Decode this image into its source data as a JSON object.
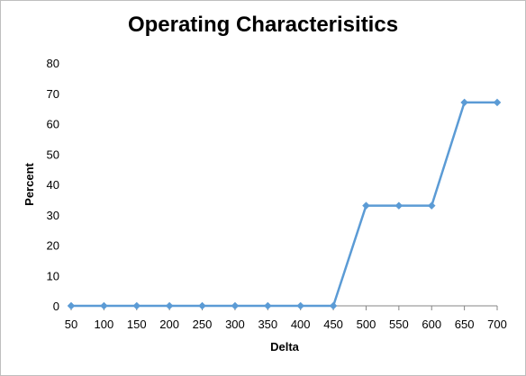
{
  "chart_data": {
    "type": "line",
    "title": "Operating Characterisitics",
    "xlabel": "Delta",
    "ylabel": "Percent",
    "categories": [
      "50",
      "100",
      "150",
      "200",
      "250",
      "300",
      "350",
      "400",
      "450",
      "500",
      "550",
      "600",
      "650",
      "700"
    ],
    "series": [
      {
        "values": [
          0,
          0,
          0,
          0,
          0,
          0,
          0,
          0,
          0,
          33,
          33,
          33,
          67,
          67
        ]
      }
    ],
    "ylim": [
      0,
      80
    ],
    "yticks": [
      0,
      10,
      20,
      30,
      40,
      50,
      60,
      70,
      80
    ],
    "grid": false,
    "legend": "none",
    "line_color": "#5b9bd5"
  }
}
